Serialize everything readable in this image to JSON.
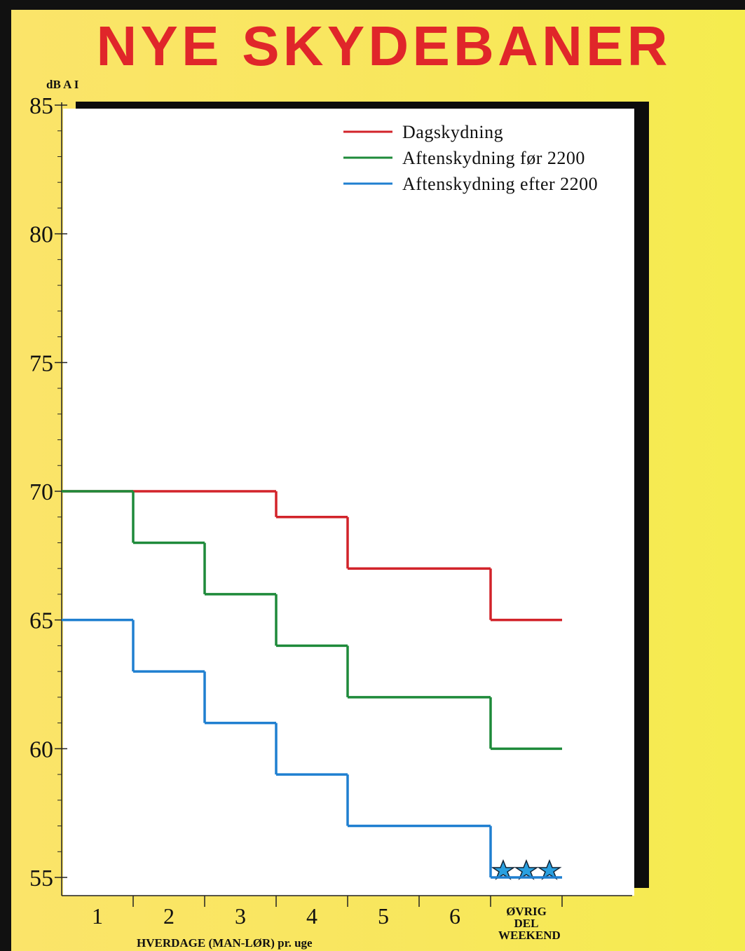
{
  "chart_data": {
    "type": "step",
    "title": "NYE SKYDEBANER",
    "y_label": "dB A I",
    "x_label": "HVERDAGE (MAN-LØR) pr. uge",
    "categories": [
      "1",
      "2",
      "3",
      "4",
      "5",
      "6",
      "ØVRIG DEL WEEKEND"
    ],
    "series": [
      {
        "name": "Dagskydning",
        "color": "#d2232a",
        "values": [
          70,
          70,
          70,
          69,
          67,
          67,
          65
        ]
      },
      {
        "name": "Aftenskydning før 2200",
        "color": "#1e8a3a",
        "values": [
          70,
          68,
          66,
          64,
          62,
          62,
          60
        ]
      },
      {
        "name": "Aftenskydning efter 2200",
        "color": "#1f7fd0",
        "values": [
          65,
          63,
          61,
          59,
          57,
          57,
          55
        ]
      }
    ],
    "ylim": [
      55,
      85
    ],
    "yticks": [
      55,
      60,
      65,
      70,
      75,
      80,
      85
    ]
  }
}
